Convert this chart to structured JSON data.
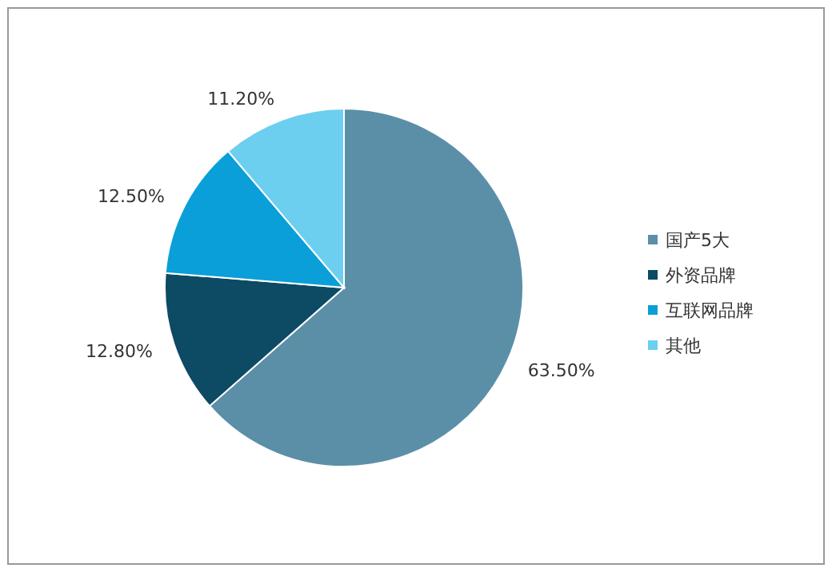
{
  "chart_data": {
    "type": "pie",
    "categories": [
      "国产5大",
      "外资品牌",
      "互联网品牌",
      "其他"
    ],
    "values": [
      63.5,
      12.8,
      12.5,
      11.2
    ],
    "colors": [
      "#5b8fa8",
      "#0d4a63",
      "#0a9fd8",
      "#6ccff0"
    ],
    "value_labels": [
      "63.50%",
      "12.80%",
      "12.50%",
      "11.20%"
    ],
    "legend": "right"
  }
}
